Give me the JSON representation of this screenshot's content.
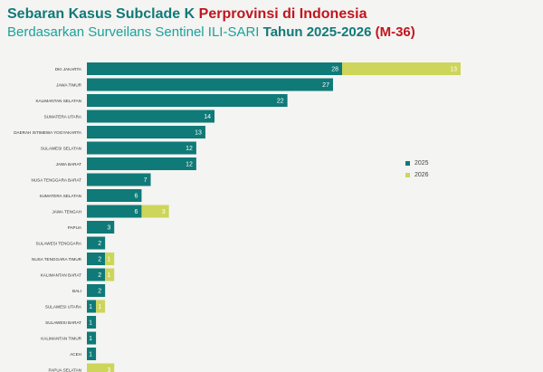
{
  "title": {
    "line1_part1": "Sebaran Kasus Subclade K ",
    "line1_part2": "Perprovinsi di Indonesia",
    "line2_part1": "Berdasarkan Surveilans Sentinel ILI-SARI ",
    "line2_part2": "Tahun 2025-2026 ",
    "line2_part3": "(M-36)"
  },
  "colors": {
    "series_2025": "#0f7a78",
    "series_2026": "#cdd55a",
    "title_teal": "#117a78",
    "title_red": "#c0161f",
    "background": "#f4f4f2"
  },
  "chart_data": {
    "type": "bar",
    "orientation": "horizontal",
    "stacked": true,
    "categories": [
      "DKI JAKARTA",
      "JAWA TIMUR",
      "KALIMANTAN SELATAN",
      "SUMATERA UTARA",
      "DAERAH ISTIMEWA YOGYAKARTA",
      "SULAWESI SELATAN",
      "JAWA BARAT",
      "NUSA TENGGARA BARAT",
      "SUMATERA SELATAN",
      "JAWA TENGAH",
      "PAPUA",
      "SULAWESI TENGGARA",
      "NUSA TENGGARA TIMUR",
      "KALIMANTAN BARAT",
      "BALI",
      "SULAWESI UTARA",
      "SULAWESI BARAT",
      "KALIMANTAN TIMUR",
      "ACEH",
      "PAPUA SELATAN"
    ],
    "series": [
      {
        "name": "2025",
        "values": [
          28,
          27,
          22,
          14,
          13,
          12,
          12,
          7,
          6,
          6,
          3,
          2,
          2,
          2,
          2,
          1,
          1,
          1,
          1,
          0
        ]
      },
      {
        "name": "2026",
        "values": [
          13,
          0,
          0,
          0,
          0,
          0,
          0,
          0,
          0,
          3,
          0,
          0,
          1,
          1,
          0,
          1,
          0,
          0,
          0,
          3
        ]
      }
    ],
    "xlim": [
      0,
      41
    ],
    "grid": false,
    "legend_position": "right"
  }
}
